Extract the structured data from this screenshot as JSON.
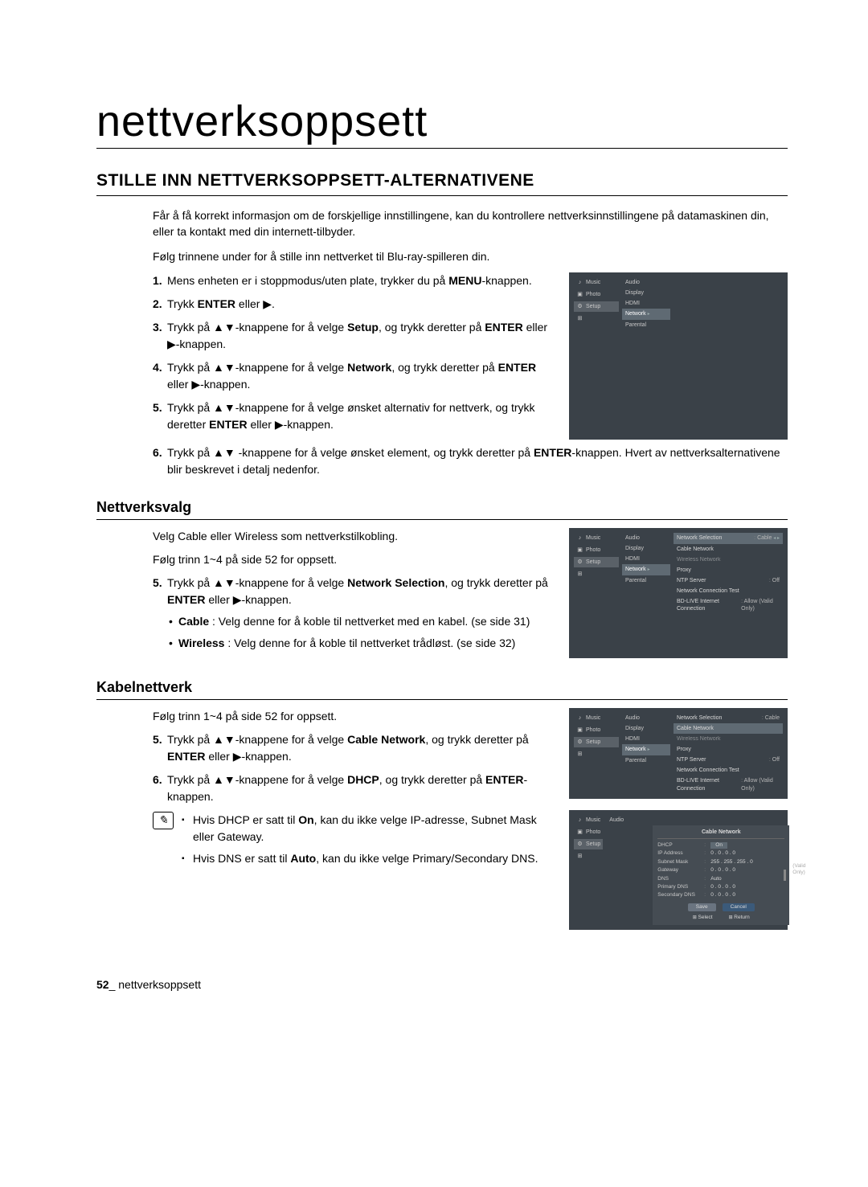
{
  "page": {
    "title": "nettverksoppsett",
    "section_title": "STILLE INN NETTVERKSOPPSETT-ALTERNATIVENE",
    "intro1": "Får å få korrekt informasjon om de forskjellige innstillingene, kan du kontrollere nettverksinnstillingene på datamaskinen din, eller ta kontakt med din internett-tilbyder.",
    "intro2": "Følg trinnene under for å stille inn nettverket til Blu-ray-spilleren din.",
    "footer_page": "52",
    "footer_label": "_ nettverksoppsett"
  },
  "steps_main": [
    {
      "n": "1.",
      "pre": "Mens enheten er i stoppmodus/uten plate, trykker du på ",
      "b": "MENU",
      "post": "-knappen."
    },
    {
      "n": "2.",
      "pre": "Trykk ",
      "b": "ENTER",
      "post": " eller ▶."
    },
    {
      "n": "3.",
      "pre": "Trykk på ▲▼-knappene for å velge ",
      "b": "Setup",
      "post": ", og trykk deretter på ",
      "b2": "ENTER",
      "post2": " eller ▶-knappen."
    },
    {
      "n": "4.",
      "pre": "Trykk på ▲▼-knappene for å velge ",
      "b": "Network",
      "post": ", og trykk deretter på ",
      "b2": "ENTER",
      "post2": " eller ▶-knappen."
    },
    {
      "n": "5.",
      "pre": "Trykk på ▲▼-knappene for å velge ønsket alternativ for nettverk, og trykk deretter ",
      "b": "ENTER",
      "post": " eller ▶-knappen."
    },
    {
      "n": "6.",
      "pre": "Trykk på ▲▼ -knappene for å velge ønsket element, og trykk deretter på ",
      "b": "ENTER",
      "post": "-knappen. Hvert av nettverksalternativene blir beskrevet i detalj nedenfor."
    }
  ],
  "nettverksvalg": {
    "heading": "Nettverksvalg",
    "p1": "Velg Cable eller Wireless som nettverkstilkobling.",
    "p2": "Følg trinn 1~4 på side 52 for oppsett.",
    "step5_pre": "Trykk på ▲▼-knappene for å velge ",
    "step5_b": "Network Selection",
    "step5_post": ", og trykk deretter på ",
    "step5_b2": "ENTER",
    "step5_post2": " eller ▶-knappen.",
    "bul1_b": "Cable",
    "bul1_t": " : Velg denne for å koble til nettverket med en kabel. (se side 31)",
    "bul2_b": "Wireless",
    "bul2_t": " : Velg denne for å koble til nettverket trådløst. (se side 32)"
  },
  "kabelnettverk": {
    "heading": "Kabelnettverk",
    "p1": "Følg trinn 1~4 på side 52 for oppsett.",
    "s5_pre": "Trykk på ▲▼-knappene for å velge ",
    "s5_b": "Cable Network",
    "s5_post": ", og trykk deretter på ",
    "s5_b2": "ENTER",
    "s5_post2": " eller ▶-knappen.",
    "s6_pre": "Trykk på ▲▼-knappene for å velge ",
    "s6_b": "DHCP",
    "s6_post": ", og trykk deretter på ",
    "s6_b2": "ENTER",
    "s6_post2": "-knappen.",
    "note1_pre": "Hvis DHCP er satt til ",
    "note1_b": "On",
    "note1_post": ", kan du ikke velge IP-adresse, Subnet Mask eller Gateway.",
    "note2_pre": "Hvis DNS er satt til ",
    "note2_b": "Auto",
    "note2_post": ", kan du ikke velge Primary/Secondary DNS."
  },
  "mock_nav": [
    {
      "icon": "♪",
      "label": "Music"
    },
    {
      "icon": "▣",
      "label": "Photo"
    },
    {
      "icon": "⚙",
      "label": "Setup"
    }
  ],
  "mock_last_icon": "⊞",
  "mock1_menu": [
    "Audio",
    "Display",
    "HDMI",
    "Network",
    "Parental"
  ],
  "mock1_hl_index": 3,
  "mock2_menu": [
    "Audio",
    "Display",
    "HDMI",
    "Network",
    "Parental"
  ],
  "mock2_sub": [
    {
      "k": "Network Selection",
      "v": "Cable",
      "hl": true,
      "arrow": true
    },
    {
      "k": "Cable Network"
    },
    {
      "k": "Wireless Network",
      "dim": true
    },
    {
      "k": "Proxy"
    },
    {
      "k": "NTP Server",
      "v": "Off"
    },
    {
      "k": "Network Connection Test"
    },
    {
      "k": "BD-LIVE Internet Connection",
      "v": "Allow (Valid Only)"
    }
  ],
  "mock3_sub": [
    {
      "k": "Network Selection",
      "v": "Cable"
    },
    {
      "k": "Cable Network",
      "hl": true,
      "arrow": true
    },
    {
      "k": "Wireless Network",
      "dim": true
    },
    {
      "k": "Proxy"
    },
    {
      "k": "NTP Server",
      "v": "Off"
    },
    {
      "k": "Network Connection Test"
    },
    {
      "k": "BD-LIVE Internet Connection",
      "v": "Allow (Valid Only)"
    }
  ],
  "mock4": {
    "menu_top": "Audio",
    "popup_title": "Cable Network",
    "fields": [
      {
        "lbl": "DHCP",
        "val": "On",
        "hl": true
      },
      {
        "lbl": "IP Address",
        "val": "0 . 0 . 0 . 0"
      },
      {
        "lbl": "Subnet Mask",
        "val": "255 . 255 . 255 . 0"
      },
      {
        "lbl": "Gateway",
        "val": "0 . 0 . 0 . 0"
      },
      {
        "lbl": "DNS",
        "val": "Auto"
      },
      {
        "lbl": "Primary DNS",
        "val": "0 . 0 . 0 . 0"
      },
      {
        "lbl": "Secondary DNS",
        "val": "0 . 0 . 0 . 0"
      }
    ],
    "save": "Save",
    "cancel": "Cancel",
    "footer_select": "Select",
    "footer_return": "Return",
    "side_note": "(Valid Only)"
  }
}
